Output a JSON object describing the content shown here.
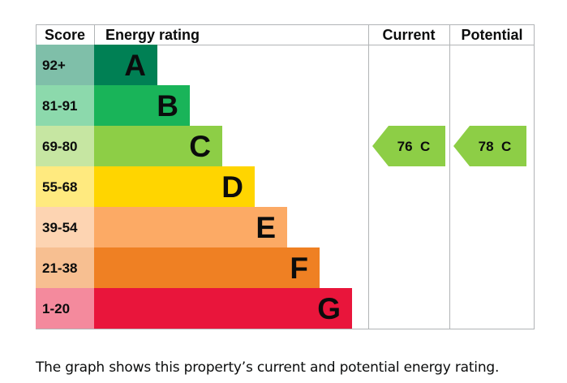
{
  "chart_data": {
    "type": "bar",
    "headers": {
      "score": "Score",
      "rating": "Energy rating",
      "current": "Current",
      "potential": "Potential"
    },
    "bands": [
      {
        "letter": "A",
        "range": "92+",
        "min": 92,
        "max": 100,
        "color": "#008054",
        "score_bg": "#7fbfa9"
      },
      {
        "letter": "B",
        "range": "81-91",
        "min": 81,
        "max": 91,
        "color": "#19b459",
        "score_bg": "#8cd9ac"
      },
      {
        "letter": "C",
        "range": "69-80",
        "min": 69,
        "max": 80,
        "color": "#8dce46",
        "score_bg": "#c6e6a2"
      },
      {
        "letter": "D",
        "range": "55-68",
        "min": 55,
        "max": 68,
        "color": "#ffd500",
        "score_bg": "#ffea7f"
      },
      {
        "letter": "E",
        "range": "39-54",
        "min": 39,
        "max": 54,
        "color": "#fcaa65",
        "score_bg": "#fdd4b2"
      },
      {
        "letter": "F",
        "range": "21-38",
        "min": 21,
        "max": 38,
        "color": "#ef8023",
        "score_bg": "#f7bf91"
      },
      {
        "letter": "G",
        "range": "1-20",
        "min": 1,
        "max": 20,
        "color": "#e9153b",
        "score_bg": "#f48a9d"
      }
    ],
    "current": {
      "value": 76,
      "letter": "C",
      "label": "76  C",
      "color": "#8dce46"
    },
    "potential": {
      "value": 78,
      "letter": "C",
      "label": "78  C",
      "color": "#8dce46"
    }
  },
  "caption": "The graph shows this property’s current and potential energy rating."
}
